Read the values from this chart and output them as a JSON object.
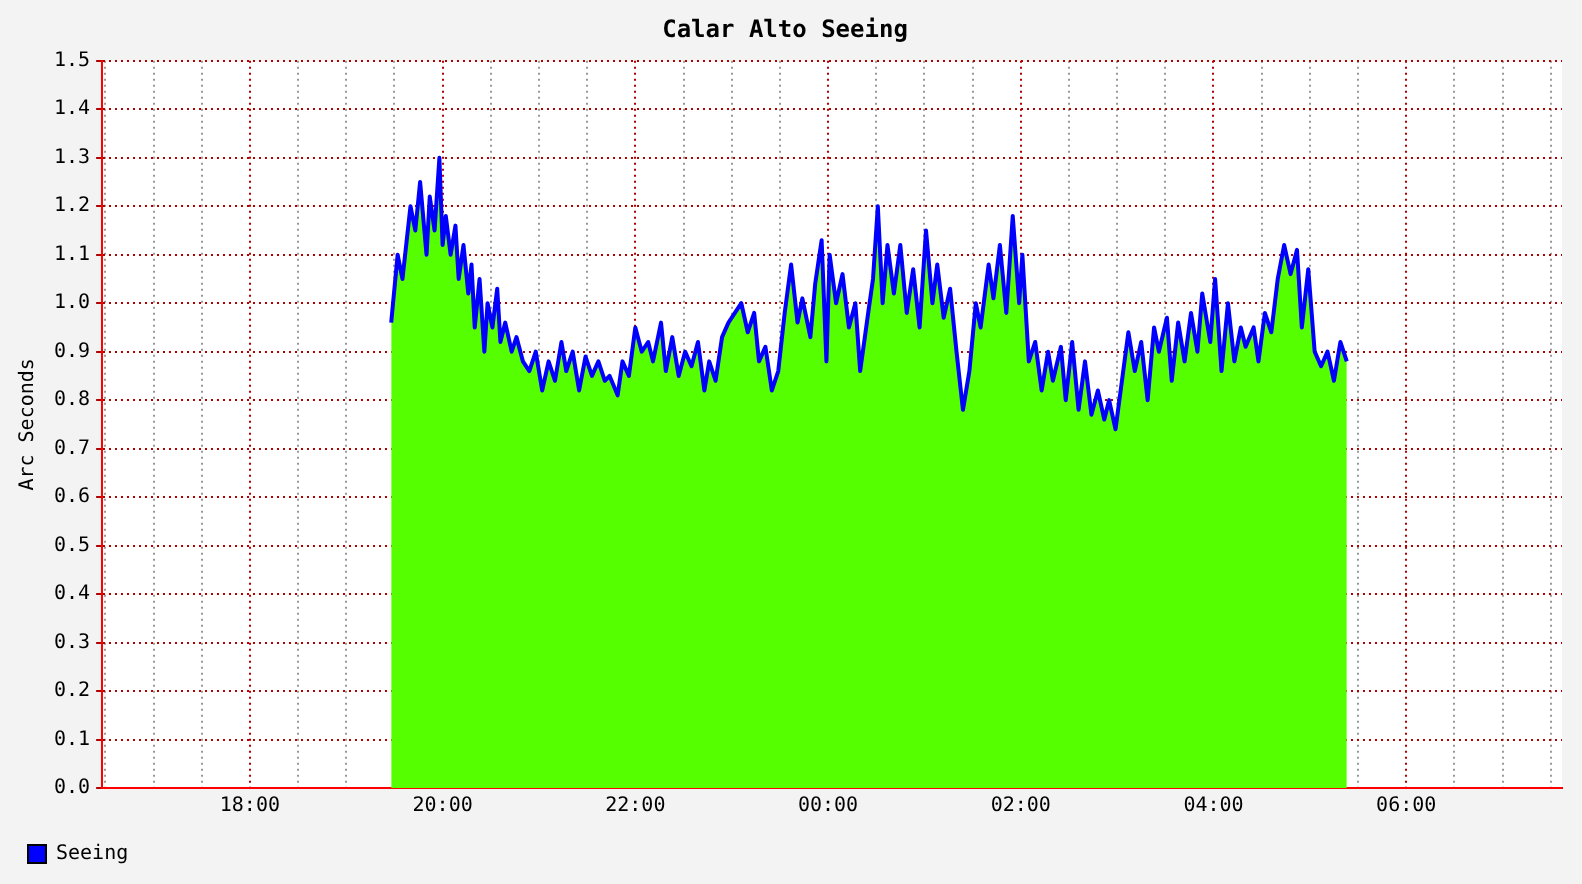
{
  "chart_data": {
    "type": "area",
    "title": "Calar Alto Seeing",
    "ylabel": "Arc Seconds",
    "x": [
      "2000-01-01T19:28",
      "2000-01-01T19:32",
      "2000-01-01T19:35",
      "2000-01-01T19:40",
      "2000-01-01T19:43",
      "2000-01-01T19:46",
      "2000-01-01T19:50",
      "2000-01-01T19:52",
      "2000-01-01T19:55",
      "2000-01-01T19:58",
      "2000-01-01T20:00",
      "2000-01-01T20:02",
      "2000-01-01T20:05",
      "2000-01-01T20:08",
      "2000-01-01T20:10",
      "2000-01-01T20:13",
      "2000-01-01T20:16",
      "2000-01-01T20:18",
      "2000-01-01T20:20",
      "2000-01-01T20:23",
      "2000-01-01T20:26",
      "2000-01-01T20:28",
      "2000-01-01T20:31",
      "2000-01-01T20:34",
      "2000-01-01T20:36",
      "2000-01-01T20:39",
      "2000-01-01T20:43",
      "2000-01-01T20:46",
      "2000-01-01T20:50",
      "2000-01-01T20:54",
      "2000-01-01T20:58",
      "2000-01-01T21:02",
      "2000-01-01T21:06",
      "2000-01-01T21:10",
      "2000-01-01T21:14",
      "2000-01-01T21:17",
      "2000-01-01T21:21",
      "2000-01-01T21:25",
      "2000-01-01T21:29",
      "2000-01-01T21:33",
      "2000-01-01T21:37",
      "2000-01-01T21:41",
      "2000-01-01T21:44",
      "2000-01-01T21:49",
      "2000-01-01T21:52",
      "2000-01-01T21:56",
      "2000-01-01T22:00",
      "2000-01-01T22:04",
      "2000-01-01T22:08",
      "2000-01-01T22:11",
      "2000-01-01T22:16",
      "2000-01-01T22:19",
      "2000-01-01T22:23",
      "2000-01-01T22:27",
      "2000-01-01T22:31",
      "2000-01-01T22:35",
      "2000-01-01T22:39",
      "2000-01-01T22:43",
      "2000-01-01T22:46",
      "2000-01-01T22:50",
      "2000-01-01T22:54",
      "2000-01-01T22:58",
      "2000-01-01T23:02",
      "2000-01-01T23:06",
      "2000-01-01T23:10",
      "2000-01-01T23:14",
      "2000-01-01T23:17",
      "2000-01-01T23:21",
      "2000-01-01T23:25",
      "2000-01-01T23:29",
      "2000-01-01T23:33",
      "2000-01-01T23:37",
      "2000-01-01T23:41",
      "2000-01-01T23:44",
      "2000-01-01T23:49",
      "2000-01-01T23:52",
      "2000-01-01T23:56",
      "2000-01-01T23:59",
      "2000-01-02T00:01",
      "2000-01-02T00:05",
      "2000-01-02T00:09",
      "2000-01-02T00:13",
      "2000-01-02T00:17",
      "2000-01-02T00:20",
      "2000-01-02T00:25",
      "2000-01-02T00:28",
      "2000-01-02T00:31",
      "2000-01-02T00:34",
      "2000-01-02T00:37",
      "2000-01-02T00:41",
      "2000-01-02T00:45",
      "2000-01-02T00:49",
      "2000-01-02T00:53",
      "2000-01-02T00:57",
      "2000-01-02T01:01",
      "2000-01-02T01:05",
      "2000-01-02T01:08",
      "2000-01-02T01:12",
      "2000-01-02T01:16",
      "2000-01-02T01:20",
      "2000-01-02T01:24",
      "2000-01-02T01:28",
      "2000-01-02T01:32",
      "2000-01-02T01:35",
      "2000-01-02T01:40",
      "2000-01-02T01:43",
      "2000-01-02T01:47",
      "2000-01-02T01:51",
      "2000-01-02T01:55",
      "2000-01-02T01:59",
      "2000-01-02T02:01",
      "2000-01-02T02:05",
      "2000-01-02T02:09",
      "2000-01-02T02:13",
      "2000-01-02T02:17",
      "2000-01-02T02:20",
      "2000-01-02T02:25",
      "2000-01-02T02:28",
      "2000-01-02T02:32",
      "2000-01-02T02:36",
      "2000-01-02T02:40",
      "2000-01-02T02:44",
      "2000-01-02T02:48",
      "2000-01-02T02:52",
      "2000-01-02T02:55",
      "2000-01-02T02:59",
      "2000-01-02T03:03",
      "2000-01-02T03:07",
      "2000-01-02T03:11",
      "2000-01-02T03:15",
      "2000-01-02T03:19",
      "2000-01-02T03:23",
      "2000-01-02T03:26",
      "2000-01-02T03:31",
      "2000-01-02T03:34",
      "2000-01-02T03:38",
      "2000-01-02T03:42",
      "2000-01-02T03:46",
      "2000-01-02T03:50",
      "2000-01-02T03:53",
      "2000-01-02T03:58",
      "2000-01-02T04:01",
      "2000-01-02T04:05",
      "2000-01-02T04:09",
      "2000-01-02T04:13",
      "2000-01-02T04:17",
      "2000-01-02T04:20",
      "2000-01-02T04:25",
      "2000-01-02T04:28",
      "2000-01-02T04:32",
      "2000-01-02T04:36",
      "2000-01-02T04:40",
      "2000-01-02T04:44",
      "2000-01-02T04:48",
      "2000-01-02T04:52",
      "2000-01-02T04:55",
      "2000-01-02T04:59",
      "2000-01-02T05:03",
      "2000-01-02T05:07",
      "2000-01-02T05:11",
      "2000-01-02T05:15",
      "2000-01-02T05:19",
      "2000-01-02T05:23"
    ],
    "series": [
      {
        "type": "area",
        "color": "#55ff00",
        "values": [
          0.96,
          1.1,
          1.05,
          1.2,
          1.15,
          1.25,
          1.1,
          1.22,
          1.15,
          1.3,
          1.12,
          1.18,
          1.1,
          1.16,
          1.05,
          1.12,
          1.02,
          1.08,
          0.95,
          1.05,
          0.9,
          1.0,
          0.95,
          1.03,
          0.92,
          0.96,
          0.9,
          0.93,
          0.88,
          0.86,
          0.9,
          0.82,
          0.88,
          0.84,
          0.92,
          0.86,
          0.9,
          0.82,
          0.89,
          0.85,
          0.88,
          0.84,
          0.85,
          0.81,
          0.88,
          0.85,
          0.95,
          0.9,
          0.92,
          0.88,
          0.96,
          0.86,
          0.93,
          0.85,
          0.9,
          0.87,
          0.92,
          0.82,
          0.88,
          0.84,
          0.93,
          0.96,
          0.98,
          1.0,
          0.94,
          0.98,
          0.88,
          0.91,
          0.82,
          0.86,
          0.98,
          1.08,
          0.96,
          1.01,
          0.93,
          1.04,
          1.13,
          0.88,
          1.1,
          1.0,
          1.06,
          0.95,
          1.0,
          0.86,
          0.98,
          1.05,
          1.2,
          1.0,
          1.12,
          1.02,
          1.12,
          0.98,
          1.07,
          0.95,
          1.15,
          1.0,
          1.08,
          0.97,
          1.03,
          0.9,
          0.78,
          0.86,
          1.0,
          0.95,
          1.08,
          1.01,
          1.12,
          0.98,
          1.18,
          1.0,
          1.1,
          0.88,
          0.92,
          0.82,
          0.9,
          0.84,
          0.91,
          0.8,
          0.92,
          0.78,
          0.88,
          0.77,
          0.82,
          0.76,
          0.8,
          0.74,
          0.84,
          0.94,
          0.86,
          0.92,
          0.8,
          0.95,
          0.9,
          0.97,
          0.84,
          0.96,
          0.88,
          0.98,
          0.9,
          1.02,
          0.92,
          1.05,
          0.86,
          1.0,
          0.88,
          0.95,
          0.91,
          0.95,
          0.88,
          0.98,
          0.94,
          1.05,
          1.12,
          1.06,
          1.11,
          0.95,
          1.07,
          0.9,
          0.87,
          0.9,
          0.84,
          0.92,
          0.88
        ]
      },
      {
        "type": "line",
        "name": "Seeing",
        "color": "#0000ff",
        "values": [
          0.96,
          1.1,
          1.05,
          1.2,
          1.15,
          1.25,
          1.1,
          1.22,
          1.15,
          1.3,
          1.12,
          1.18,
          1.1,
          1.16,
          1.05,
          1.12,
          1.02,
          1.08,
          0.95,
          1.05,
          0.9,
          1.0,
          0.95,
          1.03,
          0.92,
          0.96,
          0.9,
          0.93,
          0.88,
          0.86,
          0.9,
          0.82,
          0.88,
          0.84,
          0.92,
          0.86,
          0.9,
          0.82,
          0.89,
          0.85,
          0.88,
          0.84,
          0.85,
          0.81,
          0.88,
          0.85,
          0.95,
          0.9,
          0.92,
          0.88,
          0.96,
          0.86,
          0.93,
          0.85,
          0.9,
          0.87,
          0.92,
          0.82,
          0.88,
          0.84,
          0.93,
          0.96,
          0.98,
          1.0,
          0.94,
          0.98,
          0.88,
          0.91,
          0.82,
          0.86,
          0.98,
          1.08,
          0.96,
          1.01,
          0.93,
          1.04,
          1.13,
          0.88,
          1.1,
          1.0,
          1.06,
          0.95,
          1.0,
          0.86,
          0.98,
          1.05,
          1.2,
          1.0,
          1.12,
          1.02,
          1.12,
          0.98,
          1.07,
          0.95,
          1.15,
          1.0,
          1.08,
          0.97,
          1.03,
          0.9,
          0.78,
          0.86,
          1.0,
          0.95,
          1.08,
          1.01,
          1.12,
          0.98,
          1.18,
          1.0,
          1.1,
          0.88,
          0.92,
          0.82,
          0.9,
          0.84,
          0.91,
          0.8,
          0.92,
          0.78,
          0.88,
          0.77,
          0.82,
          0.76,
          0.8,
          0.74,
          0.84,
          0.94,
          0.86,
          0.92,
          0.8,
          0.95,
          0.9,
          0.97,
          0.84,
          0.96,
          0.88,
          0.98,
          0.9,
          1.02,
          0.92,
          1.05,
          0.86,
          1.0,
          0.88,
          0.95,
          0.91,
          0.95,
          0.88,
          0.98,
          0.94,
          1.05,
          1.12,
          1.06,
          1.11,
          0.95,
          1.07,
          0.9,
          0.87,
          0.9,
          0.84,
          0.92,
          0.88
        ]
      }
    ],
    "xlim": [
      "2000-01-01T16:28",
      "2000-01-02T07:37"
    ],
    "xticks": [
      {
        "value": "2000-01-01T16:30",
        "label": null
      },
      {
        "value": "2000-01-01T17:00",
        "label": null
      },
      {
        "value": "2000-01-01T17:30",
        "label": null
      },
      {
        "value": "2000-01-01T18:00",
        "label": "18:00"
      },
      {
        "value": "2000-01-01T18:30",
        "label": null
      },
      {
        "value": "2000-01-01T19:00",
        "label": null
      },
      {
        "value": "2000-01-01T19:30",
        "label": null
      },
      {
        "value": "2000-01-01T20:00",
        "label": "20:00"
      },
      {
        "value": "2000-01-01T20:30",
        "label": null
      },
      {
        "value": "2000-01-01T21:00",
        "label": null
      },
      {
        "value": "2000-01-01T21:30",
        "label": null
      },
      {
        "value": "2000-01-01T22:00",
        "label": "22:00"
      },
      {
        "value": "2000-01-01T22:30",
        "label": null
      },
      {
        "value": "2000-01-01T23:00",
        "label": null
      },
      {
        "value": "2000-01-01T23:30",
        "label": null
      },
      {
        "value": "2000-01-02T00:00",
        "label": "00:00"
      },
      {
        "value": "2000-01-02T00:30",
        "label": null
      },
      {
        "value": "2000-01-02T01:00",
        "label": null
      },
      {
        "value": "2000-01-02T01:30",
        "label": null
      },
      {
        "value": "2000-01-02T02:00",
        "label": "02:00"
      },
      {
        "value": "2000-01-02T02:30",
        "label": null
      },
      {
        "value": "2000-01-02T03:00",
        "label": null
      },
      {
        "value": "2000-01-02T03:30",
        "label": null
      },
      {
        "value": "2000-01-02T04:00",
        "label": "04:00"
      },
      {
        "value": "2000-01-02T04:30",
        "label": null
      },
      {
        "value": "2000-01-02T05:00",
        "label": null
      },
      {
        "value": "2000-01-02T05:30",
        "label": null
      },
      {
        "value": "2000-01-02T06:00",
        "label": "06:00"
      },
      {
        "value": "2000-01-02T06:30",
        "label": null
      },
      {
        "value": "2000-01-02T07:00",
        "label": null
      },
      {
        "value": "2000-01-02T07:30",
        "label": null
      }
    ],
    "ylim": [
      0,
      1.5
    ],
    "yticks": [
      {
        "value": 0,
        "label": "0.0"
      },
      0.1,
      0.2,
      0.3,
      0.4,
      0.5,
      0.6,
      0.7,
      0.8,
      0.9,
      {
        "value": 1,
        "label": "1.0"
      },
      1.1,
      1.2,
      1.3,
      1.4,
      1.5
    ],
    "grid": true,
    "legend": "bottom left",
    "marker": "none",
    "line_style": "solid"
  }
}
